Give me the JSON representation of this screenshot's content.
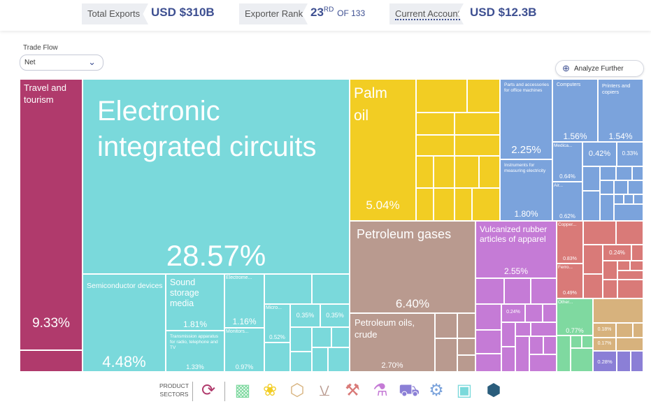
{
  "header": {
    "total_exports_label": "Total Exports",
    "total_exports_value": "USD $310B",
    "rank_label": "Exporter Rank",
    "rank_value": "23",
    "rank_suffix": "RD",
    "rank_of": "OF 133",
    "current_account_label": "Current Account",
    "current_account_value": "USD $12.3B"
  },
  "controls": {
    "trade_flow_label": "Trade Flow",
    "trade_flow_value": "Net",
    "analyze_label": "Analyze Further"
  },
  "treemap": {
    "travel": {
      "name": "Travel and tourism",
      "pct": "9.33%"
    },
    "ics": {
      "name": "Electronic integrated circuits",
      "pct": "28.57%"
    },
    "semi": {
      "name": "Semiconductor devices",
      "pct": "4.48%"
    },
    "sound": {
      "name": "Sound storage media",
      "pct": "1.81%"
    },
    "trans": {
      "name": "Transmission apparatus for radio, telephone and TV",
      "pct": "1.33%"
    },
    "electro": {
      "name": "Electrome...",
      "pct": "1.16%"
    },
    "monitors": {
      "name": "Monitors...",
      "pct": "0.97%"
    },
    "micro": {
      "name": "Micro...",
      "pct": "0.52%"
    },
    "s1": {
      "pct": "0.35%"
    },
    "s2": {
      "pct": "0.35%"
    },
    "palm": {
      "name": "Palm oil",
      "pct": "5.04%"
    },
    "petgas": {
      "name": "Petroleum gases",
      "pct": "6.40%"
    },
    "petoil": {
      "name": "Petroleum oils, crude",
      "pct": "2.70%"
    },
    "parts": {
      "name": "Parts and accessories for office machines",
      "pct": "2.25%"
    },
    "instr": {
      "name": "Instruments for measuring electricity",
      "pct": "1.80%"
    },
    "computers": {
      "name": "Computers",
      "pct": "1.56%"
    },
    "printers": {
      "name": "Printers and copiers",
      "pct": "1.54%"
    },
    "medica": {
      "name": "Medica...",
      "pct": "0.64%"
    },
    "air": {
      "name": "Air...",
      "pct": "0.62%"
    },
    "b1": {
      "pct": "0.42%"
    },
    "b2": {
      "pct": "0.33%"
    },
    "rubber": {
      "name": "Vulcanized rubber articles of apparel",
      "pct": "2.55%"
    },
    "r1": {
      "pct": "0.24%"
    },
    "copper": {
      "name": "Copper...",
      "pct": "0.83%"
    },
    "ferro": {
      "name": "Ferro...",
      "pct": "0.49%"
    },
    "m1": {
      "pct": "0.24%"
    },
    "other": {
      "name": "Other...",
      "pct": "0.77%"
    },
    "t1": {
      "pct": "0.18%"
    },
    "t2": {
      "pct": "0.17%"
    },
    "v1": {
      "pct": "0.28%"
    }
  },
  "sectors": {
    "label": "PRODUCT SECTORS",
    "items": [
      "Services",
      "Textiles",
      "Agriculture",
      "Stone",
      "Minerals",
      "Metals",
      "Chemicals",
      "Vehicles",
      "Machinery",
      "Electronics",
      "Other"
    ]
  },
  "colors": {
    "services": "#b03a6c",
    "electronics": "#7ad9db",
    "agriculture": "#f2cd23",
    "minerals": "#b99a8f",
    "machinery": "#7ba3dc",
    "chemicals": "#c57bd6",
    "metals": "#d97a78",
    "textiles": "#7fd9a0",
    "stone": "#d7b27d",
    "vehicles": "#8b7fd6",
    "other": "#2a5d7c"
  }
}
